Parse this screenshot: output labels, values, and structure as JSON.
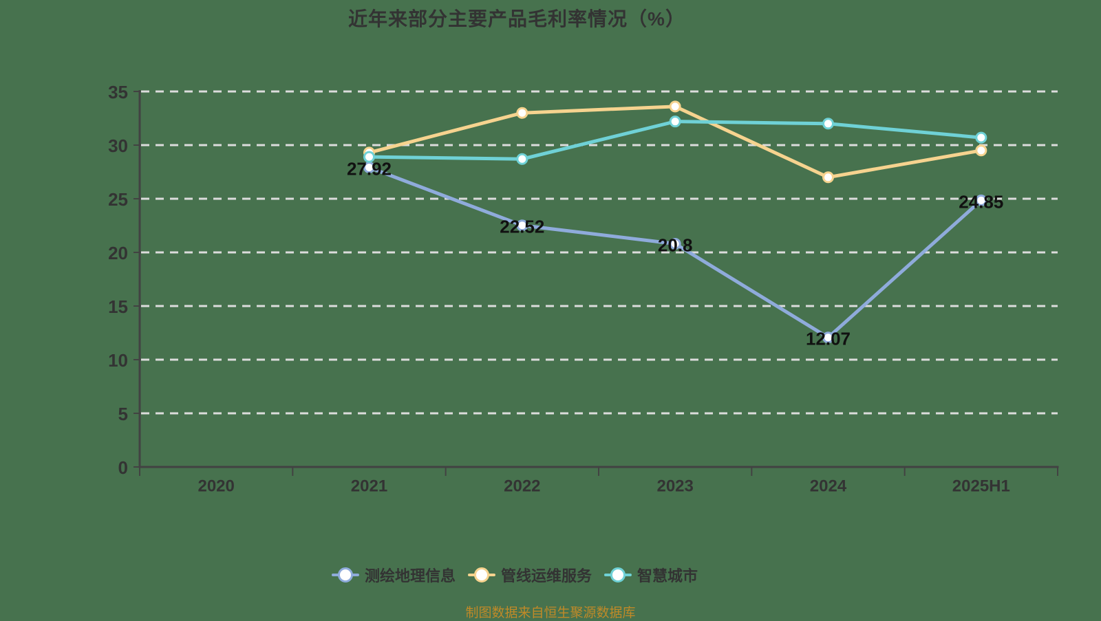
{
  "title": "近年来部分主要产品毛利率情况（%）",
  "source_note": "制图数据来自恒生聚源数据库",
  "colors": {
    "background": "#47724E",
    "title_text": "#333333",
    "axis_line": "#424242",
    "axis_label": "#333333",
    "gridline": "#DCDCDC",
    "data_label": "#111111",
    "legend_label": "#333333",
    "marker_fill": "#FFFFFF",
    "source_note": "#C08A28"
  },
  "chart_data": {
    "type": "line",
    "title": "近年来部分主要产品毛利率情况（%）",
    "categories": [
      "2020",
      "2021",
      "2022",
      "2023",
      "2024",
      "2025H1"
    ],
    "series": [
      {
        "name": "测绘地理信息",
        "color": "#8FABDB",
        "show_labels": true,
        "values": [
          null,
          27.92,
          22.52,
          20.8,
          12.07,
          24.85
        ]
      },
      {
        "name": "管线运维服务",
        "color": "#F6D38F",
        "show_labels": false,
        "values": [
          null,
          29.3,
          33,
          33.6,
          27,
          29.5
        ]
      },
      {
        "name": "智慧城市",
        "color": "#6FD1D6",
        "show_labels": false,
        "values": [
          null,
          28.9,
          28.7,
          32.2,
          32,
          30.7
        ]
      }
    ],
    "xlabel": "",
    "ylabel": "",
    "ylim": [
      0,
      35
    ],
    "y_interval": 5,
    "grid": "dashed-horizontal",
    "legend_position": "bottom"
  }
}
